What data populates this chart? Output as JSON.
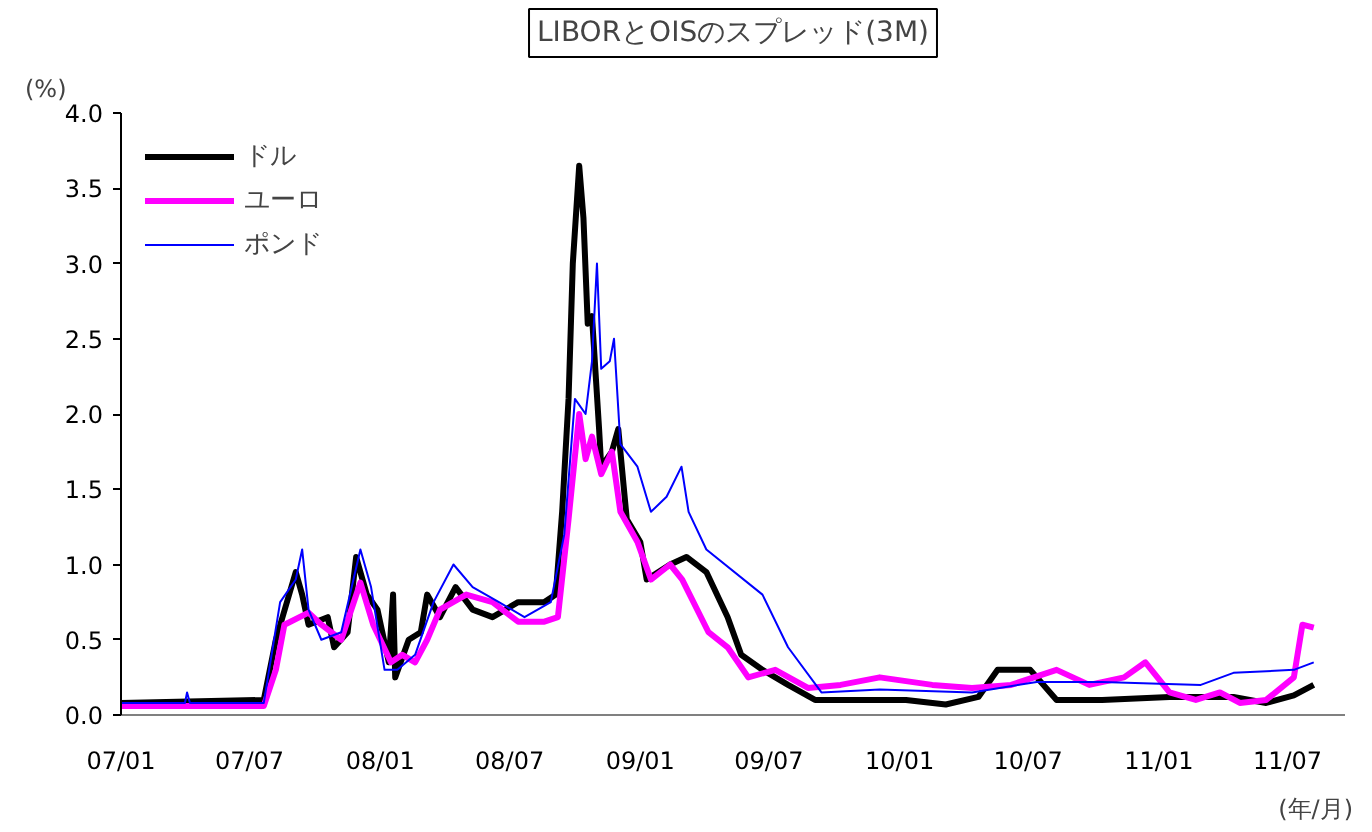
{
  "chart_data": {
    "type": "line",
    "title": "LIBORとOISのスプレッド(3M)",
    "ylabel": "(%)",
    "xlabel": "(年/月)",
    "xlim": [
      "2007-01-01",
      "2011-09-20"
    ],
    "ylim": [
      0,
      4
    ],
    "xticks": [
      {
        "value": "2007-01-01",
        "label": "07/01"
      },
      {
        "value": "2007-07-01",
        "label": "07/07"
      },
      {
        "value": "2008-01-01",
        "label": "08/01"
      },
      {
        "value": "2008-07-01",
        "label": "08/07"
      },
      {
        "value": "2009-01-01",
        "label": "09/01"
      },
      {
        "value": "2009-07-01",
        "label": "09/07"
      },
      {
        "value": "2010-01-01",
        "label": "10/01"
      },
      {
        "value": "2010-07-01",
        "label": "10/07"
      },
      {
        "value": "2011-01-01",
        "label": "11/01"
      },
      {
        "value": "2011-07-01",
        "label": "11/07"
      }
    ],
    "yticks": [
      {
        "value": 0,
        "label": "0.0"
      },
      {
        "value": 0.5,
        "label": "0.5"
      },
      {
        "value": 1,
        "label": "1.0"
      },
      {
        "value": 1.5,
        "label": "1.5"
      },
      {
        "value": 2,
        "label": "2.0"
      },
      {
        "value": 2.5,
        "label": "2.5"
      },
      {
        "value": 3,
        "label": "3.0"
      },
      {
        "value": 3.5,
        "label": "3.5"
      },
      {
        "value": 4,
        "label": "4.0"
      }
    ],
    "grid": false,
    "legend": "top left",
    "marker": "none",
    "series": [
      {
        "name": "ドル",
        "color": "#000000",
        "x": [
          "2007-01-01",
          "2007-07-21",
          "2007-08-07",
          "2007-09-04",
          "2007-09-13",
          "2007-09-22",
          "2007-10-19",
          "2007-10-28",
          "2007-11-16",
          "2007-11-28",
          "2007-12-13",
          "2007-12-28",
          "2008-01-13",
          "2008-01-19",
          "2008-01-22",
          "2008-02-10",
          "2008-02-27",
          "2008-03-07",
          "2008-03-25",
          "2008-04-16",
          "2008-05-10",
          "2008-06-07",
          "2008-07-13",
          "2008-08-19",
          "2008-09-04",
          "2008-09-13",
          "2008-09-22",
          "2008-09-28",
          "2008-10-07",
          "2008-10-13",
          "2008-10-19",
          "2008-10-25",
          "2008-11-04",
          "2008-11-07",
          "2008-11-22",
          "2008-12-01",
          "2008-12-13",
          "2009-01-01",
          "2009-01-10",
          "2009-02-12",
          "2009-03-07",
          "2009-04-04",
          "2009-05-04",
          "2009-05-23",
          "2009-06-22",
          "2009-07-28",
          "2009-09-04",
          "2009-10-10",
          "2010-01-10",
          "2010-03-07",
          "2010-04-22",
          "2010-05-19",
          "2010-07-04",
          "2010-08-10",
          "2010-10-13",
          "2011-01-16",
          "2011-04-16",
          "2011-06-01",
          "2011-07-10",
          "2011-08-07"
        ],
        "values": [
          0.08,
          0.1,
          0.5,
          0.95,
          0.8,
          0.6,
          0.65,
          0.45,
          0.55,
          1.05,
          0.8,
          0.7,
          0.35,
          0.8,
          0.25,
          0.5,
          0.55,
          0.8,
          0.65,
          0.85,
          0.7,
          0.65,
          0.75,
          0.75,
          0.8,
          1.35,
          2.1,
          3.0,
          3.65,
          3.3,
          2.6,
          2.65,
          1.9,
          1.65,
          1.75,
          1.9,
          1.3,
          1.15,
          0.9,
          1.0,
          1.05,
          0.95,
          0.65,
          0.4,
          0.3,
          0.2,
          0.1,
          0.1,
          0.1,
          0.07,
          0.12,
          0.3,
          0.3,
          0.1,
          0.1,
          0.12,
          0.12,
          0.08,
          0.13,
          0.2
        ]
      },
      {
        "name": "ユーロ",
        "color": "#ff00ff",
        "x": [
          "2007-01-01",
          "2007-07-21",
          "2007-08-07",
          "2007-08-19",
          "2007-09-22",
          "2007-10-10",
          "2007-11-07",
          "2007-12-04",
          "2007-12-22",
          "2008-01-16",
          "2008-02-01",
          "2008-02-19",
          "2008-03-07",
          "2008-03-25",
          "2008-05-01",
          "2008-06-07",
          "2008-07-13",
          "2008-08-19",
          "2008-09-07",
          "2008-09-22",
          "2008-10-07",
          "2008-10-16",
          "2008-10-25",
          "2008-11-07",
          "2008-11-22",
          "2008-12-04",
          "2008-12-28",
          "2009-01-16",
          "2009-02-12",
          "2009-03-01",
          "2009-04-07",
          "2009-05-04",
          "2009-06-02",
          "2009-07-10",
          "2009-08-25",
          "2009-10-10",
          "2009-12-04",
          "2010-02-16",
          "2010-04-13",
          "2010-06-07",
          "2010-08-10",
          "2010-09-25",
          "2010-11-13",
          "2010-12-13",
          "2011-01-16",
          "2011-02-22",
          "2011-03-28",
          "2011-04-25",
          "2011-06-01",
          "2011-07-10",
          "2011-07-22",
          "2011-08-07"
        ],
        "values": [
          0.06,
          0.06,
          0.3,
          0.6,
          0.68,
          0.6,
          0.5,
          0.88,
          0.6,
          0.35,
          0.4,
          0.35,
          0.5,
          0.7,
          0.8,
          0.75,
          0.62,
          0.62,
          0.65,
          1.3,
          2.0,
          1.7,
          1.85,
          1.6,
          1.75,
          1.35,
          1.15,
          0.9,
          1.0,
          0.9,
          0.55,
          0.45,
          0.25,
          0.3,
          0.18,
          0.2,
          0.25,
          0.2,
          0.18,
          0.2,
          0.3,
          0.2,
          0.25,
          0.35,
          0.15,
          0.1,
          0.15,
          0.08,
          0.1,
          0.25,
          0.6,
          0.58
        ]
      },
      {
        "name": "ポンド",
        "color": "#0000ff",
        "x": [
          "2007-01-01",
          "2007-04-01",
          "2007-04-04",
          "2007-04-08",
          "2007-07-21",
          "2007-08-13",
          "2007-09-04",
          "2007-09-13",
          "2007-09-22",
          "2007-10-10",
          "2007-11-07",
          "2007-12-04",
          "2007-12-19",
          "2008-01-07",
          "2008-01-25",
          "2008-02-19",
          "2008-03-16",
          "2008-04-13",
          "2008-05-10",
          "2008-06-16",
          "2008-07-22",
          "2008-08-28",
          "2008-09-16",
          "2008-10-01",
          "2008-10-16",
          "2008-10-25",
          "2008-11-01",
          "2008-11-07",
          "2008-11-19",
          "2008-11-25",
          "2008-12-04",
          "2008-12-28",
          "2009-01-16",
          "2009-02-07",
          "2009-02-28",
          "2009-03-10",
          "2009-04-04",
          "2009-06-22",
          "2009-07-28",
          "2009-09-13",
          "2009-12-04",
          "2010-04-13",
          "2010-07-13",
          "2010-10-13",
          "2011-03-01",
          "2011-04-16",
          "2011-07-10",
          "2011-08-07"
        ],
        "values": [
          0.08,
          0.08,
          0.15,
          0.08,
          0.08,
          0.75,
          0.9,
          1.1,
          0.7,
          0.5,
          0.55,
          1.1,
          0.85,
          0.3,
          0.3,
          0.4,
          0.75,
          1.0,
          0.85,
          0.75,
          0.65,
          0.75,
          1.2,
          2.1,
          2.0,
          2.35,
          3.0,
          2.3,
          2.35,
          2.5,
          1.8,
          1.65,
          1.35,
          1.45,
          1.65,
          1.35,
          1.1,
          0.8,
          0.45,
          0.15,
          0.17,
          0.15,
          0.22,
          0.22,
          0.2,
          0.28,
          0.3,
          0.35
        ]
      }
    ]
  }
}
